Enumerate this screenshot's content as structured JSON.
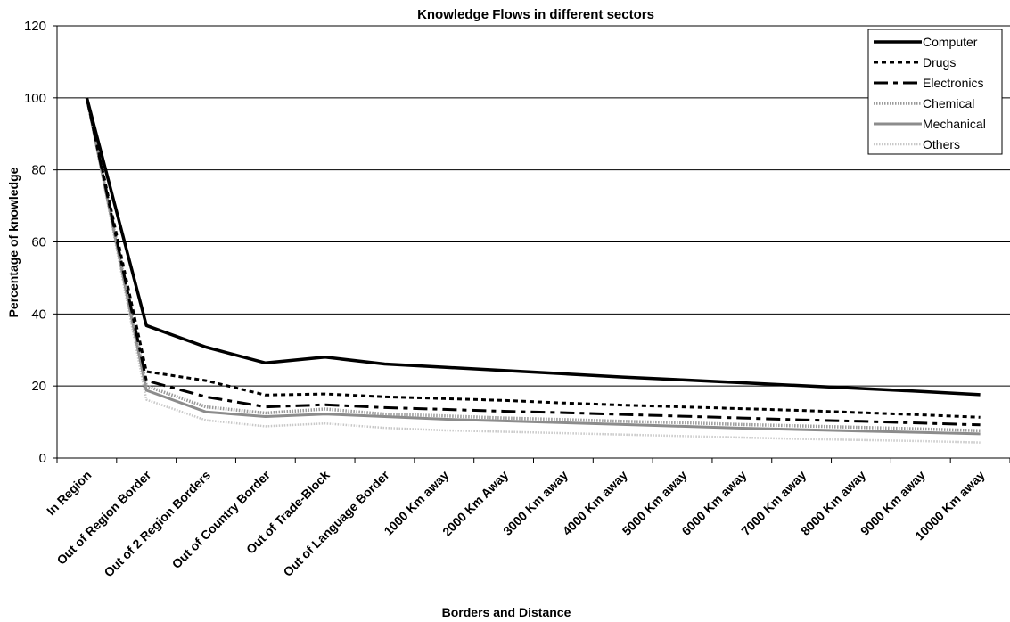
{
  "chart_data": {
    "type": "line",
    "title": "Knowledge Flows in different sectors",
    "xlabel": "Borders and Distance",
    "ylabel": "Percentage of knowledge",
    "ylim": [
      0,
      120
    ],
    "yticks": [
      0,
      20,
      40,
      60,
      80,
      100,
      120
    ],
    "grid": "horizontal",
    "legend_position": "top-right",
    "categories": [
      "In Region",
      "Out of Region Border",
      "Out of 2 Region Borders",
      "Out of Country Border",
      "Out of Trade-Block",
      "Out of Language Border",
      "1000 Km away",
      "2000 Km Away",
      "3000 Km away",
      "4000 Km away",
      "5000 Km away",
      "6000 Km away",
      "7000 Km away",
      "8000 Km away",
      "9000 Km away",
      "10000 Km away"
    ],
    "series": [
      {
        "name": "Computer",
        "color": "#000000",
        "style": "solid-thick",
        "values": [
          100,
          36.8,
          30.8,
          26.4,
          28.0,
          26.1,
          25.2,
          24.3,
          23.4,
          22.5,
          21.7,
          20.9,
          20.1,
          19.3,
          18.5,
          17.6
        ]
      },
      {
        "name": "Drugs",
        "color": "#000000",
        "style": "dotted",
        "values": [
          100,
          24.0,
          21.5,
          17.5,
          17.8,
          17.0,
          16.5,
          16.0,
          15.3,
          14.7,
          14.2,
          13.7,
          13.2,
          12.6,
          12.0,
          11.3
        ]
      },
      {
        "name": "Electronics",
        "color": "#000000",
        "style": "dashdot",
        "values": [
          100,
          21.5,
          17.0,
          14.2,
          14.8,
          14.0,
          13.5,
          13.0,
          12.6,
          12.1,
          11.6,
          11.1,
          10.6,
          10.2,
          9.7,
          9.2
        ]
      },
      {
        "name": "Chemical",
        "color": "#9a9a9a",
        "style": "hatched",
        "values": [
          100,
          20.0,
          14.2,
          12.5,
          13.6,
          12.2,
          11.7,
          11.1,
          10.7,
          10.2,
          9.8,
          9.3,
          8.9,
          8.5,
          8.1,
          7.6
        ]
      },
      {
        "name": "Mechanical",
        "color": "#8c8c8c",
        "style": "solid-gray",
        "values": [
          100,
          18.8,
          12.8,
          11.5,
          12.2,
          11.5,
          10.8,
          10.3,
          9.8,
          9.3,
          8.8,
          8.3,
          7.9,
          7.5,
          7.1,
          6.7
        ]
      },
      {
        "name": "Others",
        "color": "#c8c8c8",
        "style": "light-dotted",
        "values": [
          100,
          16.2,
          10.5,
          8.8,
          9.6,
          8.4,
          7.7,
          7.3,
          6.9,
          6.5,
          6.1,
          5.7,
          5.3,
          5.0,
          4.7,
          4.3
        ]
      }
    ]
  }
}
